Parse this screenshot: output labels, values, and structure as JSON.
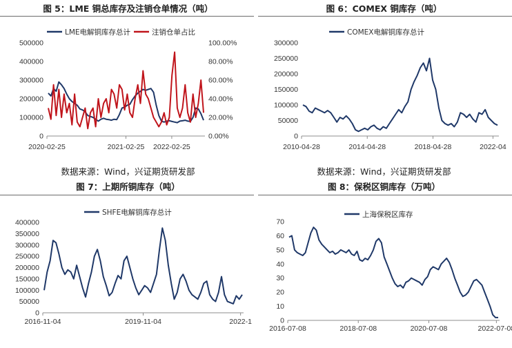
{
  "titles": {
    "fig5": "图 5：LME 铜总库存及注销仓单情况（吨）",
    "fig6": "图 6：COMEX 铜库存（吨）",
    "fig7": "图 7：上期所铜库存（吨）",
    "fig8": "图 8：保税区铜库存（万吨）"
  },
  "sources": {
    "left": "数据来源：Wind，兴证期货研发部",
    "right": "数据来源：Wind，兴证期货研发部"
  },
  "colors": {
    "navy": "#1f3868",
    "red": "#c0141b",
    "axis": "#8c8c8c"
  },
  "chart_data": [
    {
      "id": "fig5",
      "type": "line",
      "x_ticks": [
        "2020-02-25",
        "2021-02-25",
        "2022-02-25"
      ],
      "y_ticks": [
        "0",
        "100000",
        "200000",
        "300000",
        "400000",
        "500000"
      ],
      "y2_ticks": [
        "0.00%",
        "20.00%",
        "40.00%",
        "60.00%",
        "80.00%",
        "100.00%"
      ],
      "ylim": [
        0,
        500000
      ],
      "y2lim": [
        0,
        100
      ],
      "series": [
        {
          "name": "LME电解铜库存总计",
          "color": "#1f3868",
          "axis": "left",
          "values": [
            230000,
            215000,
            255000,
            240000,
            290000,
            275000,
            255000,
            225000,
            200000,
            185000,
            175000,
            165000,
            145000,
            140000,
            130000,
            110000,
            105000,
            100000,
            90000,
            80000,
            90000,
            95000,
            90000,
            88000,
            85000,
            90000,
            88000,
            115000,
            150000,
            155000,
            165000,
            170000,
            195000,
            215000,
            230000,
            240000,
            250000,
            245000,
            250000,
            255000,
            235000,
            165000,
            110000,
            80000,
            75000,
            80000,
            82000,
            78000,
            75000,
            72000,
            80000,
            82000,
            85000,
            80000,
            78000,
            100000,
            150000,
            145000,
            120000,
            85000
          ]
        },
        {
          "name": "注销仓单占比",
          "color": "#c0141b",
          "axis": "right",
          "values": [
            30,
            18,
            55,
            22,
            50,
            20,
            45,
            25,
            35,
            12,
            45,
            15,
            10,
            20,
            30,
            8,
            25,
            30,
            10,
            40,
            20,
            35,
            40,
            25,
            50,
            45,
            30,
            55,
            50,
            28,
            45,
            25,
            20,
            40,
            55,
            35,
            70,
            45,
            40,
            30,
            20,
            15,
            10,
            15,
            25,
            12,
            20,
            65,
            90,
            30,
            20,
            30,
            55,
            25,
            15,
            45,
            20,
            35,
            60,
            25
          ]
        }
      ]
    },
    {
      "id": "fig6",
      "type": "line",
      "x_ticks": [
        "2010-04-28",
        "2014-04-28",
        "2018-04-28",
        "2022-04"
      ],
      "y_ticks": [
        "0",
        "50000",
        "100000",
        "150000",
        "200000",
        "250000",
        "300000"
      ],
      "ylim": [
        0,
        300000
      ],
      "series": [
        {
          "name": "COMEX电解铜库存总计",
          "color": "#1f3868",
          "values": [
            100000,
            95000,
            80000,
            75000,
            90000,
            85000,
            80000,
            75000,
            82000,
            75000,
            60000,
            45000,
            60000,
            55000,
            65000,
            55000,
            40000,
            20000,
            15000,
            20000,
            25000,
            20000,
            30000,
            35000,
            25000,
            20000,
            30000,
            25000,
            40000,
            55000,
            70000,
            85000,
            75000,
            95000,
            110000,
            150000,
            175000,
            195000,
            220000,
            235000,
            210000,
            250000,
            180000,
            150000,
            90000,
            50000,
            40000,
            35000,
            40000,
            30000,
            45000,
            75000,
            70000,
            60000,
            70000,
            55000,
            45000,
            75000,
            70000,
            85000,
            60000,
            50000,
            40000,
            35000
          ]
        }
      ]
    },
    {
      "id": "fig7",
      "type": "line",
      "x_ticks": [
        "2016-11-04",
        "2019-11-04",
        "2022-1"
      ],
      "y_ticks": [
        "0",
        "50000",
        "100000",
        "150000",
        "200000",
        "250000",
        "300000",
        "350000",
        "400000"
      ],
      "ylim": [
        0,
        400000
      ],
      "series": [
        {
          "name": "SHFE电解铜库存总计",
          "color": "#1f3868",
          "values": [
            100000,
            180000,
            230000,
            320000,
            310000,
            260000,
            200000,
            170000,
            190000,
            180000,
            150000,
            210000,
            160000,
            110000,
            70000,
            130000,
            180000,
            250000,
            280000,
            230000,
            160000,
            120000,
            75000,
            90000,
            130000,
            165000,
            150000,
            230000,
            250000,
            200000,
            150000,
            110000,
            80000,
            100000,
            120000,
            110000,
            90000,
            130000,
            170000,
            280000,
            375000,
            320000,
            210000,
            130000,
            60000,
            90000,
            150000,
            170000,
            140000,
            100000,
            80000,
            70000,
            60000,
            90000,
            130000,
            140000,
            80000,
            60000,
            50000,
            90000,
            160000,
            80000,
            50000,
            45000,
            40000,
            75000,
            60000,
            80000
          ]
        }
      ]
    },
    {
      "id": "fig8",
      "type": "line",
      "x_ticks": [
        "2016-07-08",
        "2018-07-08",
        "2020-07-08",
        "2022-07-08"
      ],
      "y_ticks": [
        "0",
        "10",
        "20",
        "30",
        "40",
        "50",
        "60",
        "70"
      ],
      "ylim": [
        0,
        70
      ],
      "series": [
        {
          "name": "上海保税区库存",
          "color": "#1f3868",
          "values": [
            59,
            60,
            50,
            48,
            47,
            46,
            48,
            55,
            62,
            66,
            64,
            57,
            54,
            52,
            50,
            48,
            49,
            47,
            48,
            50,
            49,
            48,
            50,
            47,
            46,
            49,
            43,
            42,
            44,
            43,
            46,
            50,
            56,
            58,
            55,
            45,
            40,
            35,
            30,
            26,
            24,
            25,
            23,
            27,
            28,
            30,
            29,
            28,
            27,
            25,
            29,
            31,
            36,
            38,
            37,
            36,
            40,
            42,
            44,
            41,
            36,
            30,
            25,
            20,
            17,
            18,
            20,
            24,
            28,
            29,
            27,
            25,
            20,
            15,
            10,
            4,
            2,
            2
          ]
        }
      ]
    }
  ]
}
